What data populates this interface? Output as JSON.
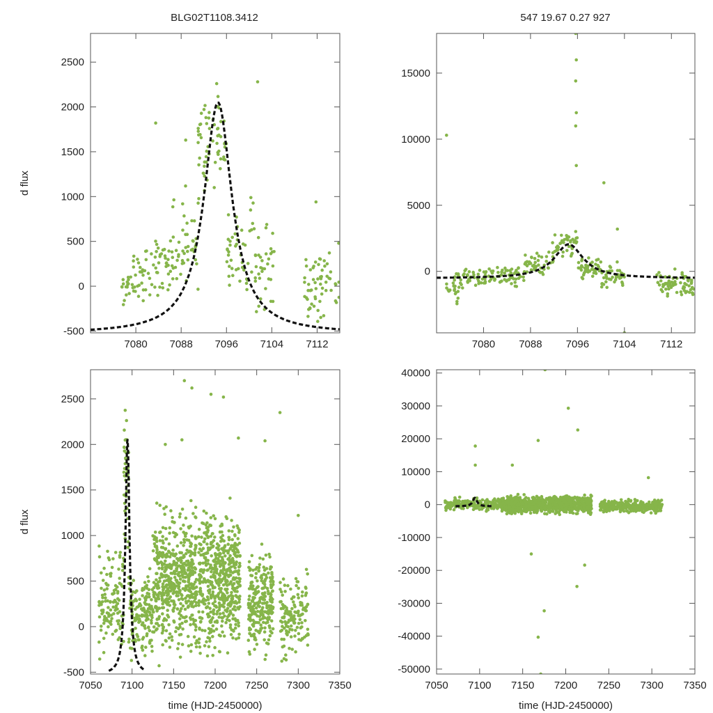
{
  "header": {
    "left_title": "BLG02T1108.3412",
    "right_title": "547  19.67  0.27  927"
  },
  "colors": {
    "points": "#86b54a",
    "fit": "#111111",
    "frame": "#555555"
  },
  "chart_data": [
    {
      "id": "top-left",
      "type": "scatter",
      "title": "BLG02T1108.3412",
      "xlabel": "",
      "ylabel": "d flux",
      "xlim": [
        7072,
        7116
      ],
      "ylim": [
        -520,
        2820
      ],
      "xticks": [
        7080,
        7088,
        7096,
        7104,
        7112
      ],
      "yticks": [
        -500,
        0,
        500,
        1000,
        1500,
        2000,
        2500
      ],
      "fit": {
        "t0": 7094.5,
        "peak": 2050,
        "base": -530,
        "tau": 3.0,
        "xrange": [
          7072,
          7116
        ]
      },
      "clusters": [
        {
          "x0": 7077.5,
          "x1": 7079.5,
          "ymin": -400,
          "ymax": 300,
          "n": 18
        },
        {
          "x0": 7079.5,
          "x1": 7082.5,
          "ymin": -350,
          "ymax": 550,
          "n": 30
        },
        {
          "x0": 7082.5,
          "x1": 7086.5,
          "ymin": -300,
          "ymax": 700,
          "n": 38
        },
        {
          "x0": 7086.5,
          "x1": 7091,
          "ymin": -250,
          "ymax": 1200,
          "n": 45
        },
        {
          "x0": 7091,
          "x1": 7093,
          "ymin": 600,
          "ymax": 2800,
          "n": 30
        },
        {
          "x0": 7093,
          "x1": 7096,
          "ymin": 900,
          "ymax": 2500,
          "n": 30
        },
        {
          "x0": 7096,
          "x1": 7101,
          "ymin": -300,
          "ymax": 1100,
          "n": 45
        },
        {
          "x0": 7101,
          "x1": 7104.5,
          "ymin": -450,
          "ymax": 900,
          "n": 35
        },
        {
          "x0": 7109.5,
          "x1": 7113.5,
          "ymin": -480,
          "ymax": 500,
          "n": 45
        },
        {
          "x0": 7113.5,
          "x1": 7116,
          "ymin": -400,
          "ymax": 450,
          "n": 15
        }
      ],
      "outliers": [
        [
          7083.5,
          1820
        ],
        [
          7088.8,
          1630
        ],
        [
          7101.5,
          2280
        ],
        [
          7111.8,
          940
        ],
        [
          7115.8,
          480
        ]
      ]
    },
    {
      "id": "top-right",
      "type": "scatter",
      "title": "547  19.67  0.27  927",
      "xlabel": "",
      "ylabel": "",
      "xlim": [
        7072,
        7116
      ],
      "ylim": [
        -4650,
        18000
      ],
      "xticks": [
        7080,
        7088,
        7096,
        7104,
        7112
      ],
      "yticks": [
        0,
        5000,
        10000,
        15000
      ],
      "fit": {
        "t0": 7094.5,
        "peak": 2050,
        "base": -530,
        "tau": 3.0,
        "xrange": [
          7072,
          7116
        ]
      },
      "clusters": [
        {
          "x0": 7073.5,
          "x1": 7076,
          "ymin": -2800,
          "ymax": 300,
          "n": 25
        },
        {
          "x0": 7076,
          "x1": 7080.5,
          "ymin": -1500,
          "ymax": 500,
          "n": 40
        },
        {
          "x0": 7080.5,
          "x1": 7087,
          "ymin": -1500,
          "ymax": 700,
          "n": 55
        },
        {
          "x0": 7087,
          "x1": 7092,
          "ymin": -800,
          "ymax": 2500,
          "n": 45
        },
        {
          "x0": 7092,
          "x1": 7096,
          "ymin": 500,
          "ymax": 3500,
          "n": 40
        },
        {
          "x0": 7096,
          "x1": 7100,
          "ymin": -1000,
          "ymax": 1500,
          "n": 45
        },
        {
          "x0": 7100,
          "x1": 7104,
          "ymin": -1800,
          "ymax": 800,
          "n": 40
        },
        {
          "x0": 7109.5,
          "x1": 7115.8,
          "ymin": -2300,
          "ymax": 500,
          "n": 70
        }
      ],
      "outliers": [
        [
          7073.7,
          10300
        ],
        [
          7095.7,
          18000
        ],
        [
          7095.8,
          16000
        ],
        [
          7095.7,
          14400
        ],
        [
          7095.8,
          12000
        ],
        [
          7095.7,
          11000
        ],
        [
          7095.8,
          8000
        ],
        [
          7100.5,
          6700
        ],
        [
          7102.8,
          3200
        ],
        [
          7104,
          -4650
        ]
      ]
    },
    {
      "id": "bottom-left",
      "type": "scatter",
      "title": "",
      "xlabel": "time (HJD-2450000)",
      "ylabel": "d flux",
      "xlim": [
        7050,
        7350
      ],
      "ylim": [
        -520,
        2820
      ],
      "xticks": [
        7050,
        7100,
        7150,
        7200,
        7250,
        7300,
        7350
      ],
      "yticks": [
        -500,
        0,
        500,
        1000,
        1500,
        2000,
        2500
      ],
      "fit": {
        "t0": 7094.5,
        "peak": 2050,
        "base": -530,
        "tau": 3.0,
        "xrange": [
          7072,
          7116
        ]
      },
      "clusters": [
        {
          "x0": 7060,
          "x1": 7090,
          "ymin": -450,
          "ymax": 1000,
          "n": 120
        },
        {
          "x0": 7090,
          "x1": 7096,
          "ymin": 500,
          "ymax": 2800,
          "n": 40
        },
        {
          "x0": 7096,
          "x1": 7125,
          "ymin": -500,
          "ymax": 800,
          "n": 150
        },
        {
          "x0": 7125,
          "x1": 7178,
          "ymin": -500,
          "ymax": 1500,
          "n": 550
        },
        {
          "x0": 7180,
          "x1": 7230,
          "ymin": -500,
          "ymax": 1500,
          "n": 550
        },
        {
          "x0": 7240,
          "x1": 7270,
          "ymin": -450,
          "ymax": 1000,
          "n": 250
        },
        {
          "x0": 7278,
          "x1": 7312,
          "ymin": -500,
          "ymax": 700,
          "n": 140
        }
      ],
      "outliers": [
        [
          7163,
          2700
        ],
        [
          7172,
          2620
        ],
        [
          7195,
          2550
        ],
        [
          7210,
          2520
        ],
        [
          7278,
          2350
        ],
        [
          7140,
          2000
        ],
        [
          7160,
          2050
        ],
        [
          7228,
          2070
        ],
        [
          7260,
          2040
        ],
        [
          7300,
          1220
        ]
      ]
    },
    {
      "id": "bottom-right",
      "type": "scatter",
      "title": "",
      "xlabel": "time (HJD-2450000)",
      "ylabel": "",
      "xlim": [
        7050,
        7350
      ],
      "ylim": [
        -51500,
        41000
      ],
      "xticks": [
        7050,
        7100,
        7150,
        7200,
        7250,
        7300,
        7350
      ],
      "yticks": [
        -50000,
        -40000,
        -30000,
        -20000,
        -10000,
        0,
        10000,
        20000,
        30000,
        40000
      ],
      "fit": {
        "t0": 7094.5,
        "peak": 2050,
        "base": -530,
        "tau": 3.0,
        "xrange": [
          7072,
          7116
        ]
      },
      "clusters": [
        {
          "x0": 7060,
          "x1": 7125,
          "ymin": -2500,
          "ymax": 2500,
          "n": 220
        },
        {
          "x0": 7125,
          "x1": 7178,
          "ymin": -3500,
          "ymax": 3500,
          "n": 500
        },
        {
          "x0": 7180,
          "x1": 7230,
          "ymin": -3500,
          "ymax": 3500,
          "n": 450
        },
        {
          "x0": 7240,
          "x1": 7312,
          "ymin": -3000,
          "ymax": 2000,
          "n": 320
        }
      ],
      "outliers": [
        [
          7095,
          17800
        ],
        [
          7095,
          12000
        ],
        [
          7168,
          19500
        ],
        [
          7176,
          41000
        ],
        [
          7203,
          29300
        ],
        [
          7214,
          22700
        ],
        [
          7168,
          -40300
        ],
        [
          7171,
          -51500
        ],
        [
          7175,
          -32300
        ],
        [
          7160,
          -15000
        ],
        [
          7213,
          -24900
        ],
        [
          7222,
          -18400
        ],
        [
          7296,
          8200
        ],
        [
          7138,
          12000
        ]
      ]
    }
  ]
}
